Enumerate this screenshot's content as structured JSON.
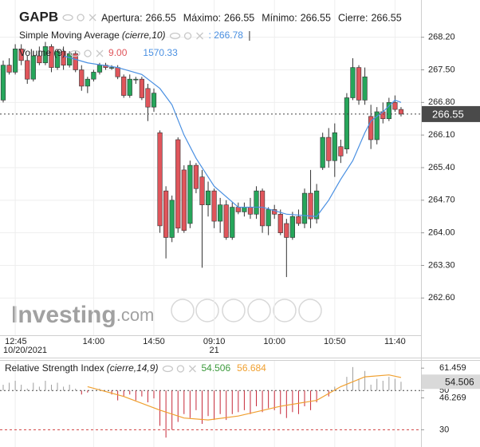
{
  "chart_data": [
    {
      "type": "candlestick",
      "symbol": "GAPB",
      "header": [
        {
          "label": "Apertura:",
          "value": "266.55"
        },
        {
          "label": "Máximo:",
          "value": "266.55"
        },
        {
          "label": "Mínimo:",
          "value": "266.55"
        },
        {
          "label": "Cierre:",
          "value": "266.55"
        }
      ],
      "open": [
        266.85,
        267.6,
        267.45,
        267.95,
        267.7,
        267.3,
        267.8,
        267.65,
        268.0,
        267.55,
        267.9,
        267.6,
        267.85,
        267.5,
        267.15,
        267.3,
        267.45,
        267.6,
        267.55,
        267.55,
        267.35,
        266.95,
        267.3,
        267.3,
        267.1,
        266.7,
        266.15,
        264.9,
        263.9,
        266.0,
        265.35,
        264.2,
        265.45,
        265.2,
        264.6,
        264.9,
        264.25,
        264.6,
        263.9,
        264.55,
        264.45,
        264.55,
        264.4,
        264.9,
        264.15,
        264.5,
        264.4,
        264.2,
        263.9,
        264.35,
        264.2,
        264.85,
        264.3,
        265.4,
        266.05,
        265.55,
        265.85,
        265.8,
        266.9,
        267.55,
        266.85,
        266.5,
        266.0,
        266.6,
        266.45,
        266.8,
        266.65
      ],
      "high": [
        267.7,
        267.75,
        268.05,
        268.05,
        267.8,
        267.9,
        268.0,
        268.1,
        268.05,
        267.95,
        268.0,
        267.9,
        267.9,
        267.6,
        267.35,
        267.5,
        267.65,
        267.65,
        267.6,
        267.6,
        267.4,
        267.4,
        267.35,
        267.35,
        267.2,
        267.1,
        266.2,
        265.0,
        264.8,
        266.05,
        265.45,
        265.55,
        265.5,
        265.35,
        265.1,
        264.95,
        264.75,
        264.7,
        264.65,
        264.65,
        264.65,
        264.75,
        265.0,
        264.95,
        264.55,
        264.6,
        264.5,
        264.3,
        264.45,
        264.5,
        264.95,
        265.35,
        265.05,
        266.15,
        266.25,
        266.35,
        266.0,
        267.0,
        267.75,
        267.6,
        267.55,
        266.75,
        266.7,
        266.8,
        266.9,
        266.95,
        266.7
      ],
      "low": [
        266.8,
        267.4,
        267.4,
        267.6,
        267.2,
        267.25,
        267.6,
        267.6,
        267.45,
        267.5,
        267.5,
        267.55,
        267.45,
        267.05,
        267.0,
        267.25,
        267.4,
        267.5,
        267.5,
        267.3,
        266.9,
        266.9,
        267.2,
        266.85,
        266.4,
        266.6,
        264.0,
        263.45,
        263.8,
        264.0,
        264.0,
        264.1,
        264.85,
        263.25,
        264.35,
        264.1,
        264.0,
        263.85,
        263.85,
        264.4,
        264.35,
        264.3,
        264.3,
        264.0,
        263.95,
        264.3,
        263.95,
        263.05,
        263.85,
        264.15,
        264.1,
        264.1,
        264.2,
        265.35,
        265.4,
        265.2,
        265.5,
        265.7,
        266.85,
        266.75,
        266.75,
        265.8,
        265.9,
        266.35,
        266.4,
        266.6,
        266.5
      ],
      "close": [
        267.6,
        267.45,
        267.95,
        267.7,
        267.3,
        267.8,
        267.65,
        268.0,
        267.55,
        267.9,
        267.6,
        267.85,
        267.5,
        267.15,
        267.3,
        267.45,
        267.6,
        267.55,
        267.55,
        267.35,
        266.95,
        267.3,
        267.3,
        266.9,
        266.7,
        267.0,
        264.15,
        263.9,
        264.7,
        264.1,
        264.05,
        265.45,
        264.95,
        264.6,
        264.9,
        264.25,
        264.6,
        263.9,
        264.55,
        264.45,
        264.55,
        264.4,
        264.9,
        264.15,
        264.5,
        264.4,
        264.0,
        263.9,
        264.35,
        264.2,
        264.85,
        264.3,
        264.9,
        266.05,
        265.55,
        266.15,
        265.65,
        266.9,
        267.55,
        266.85,
        267.35,
        266.0,
        266.6,
        266.45,
        266.8,
        266.65,
        266.55
      ],
      "up_color": "#26a65b",
      "down_color": "#e0555b",
      "xticks": [
        {
          "value": 2,
          "label": "12:45"
        },
        {
          "value": 15,
          "label": "14:00"
        },
        {
          "value": 25,
          "label": "14:50"
        },
        {
          "value": 35,
          "label": "09:10"
        },
        {
          "value": 45,
          "label": "10:00"
        },
        {
          "value": 55,
          "label": "10:50"
        },
        {
          "value": 65,
          "label": "11:40"
        }
      ],
      "date_labels": [
        {
          "value": 2,
          "label": "10/20/2021"
        },
        {
          "value": 35,
          "label": "21"
        }
      ],
      "ylim": [
        261.8,
        269.0
      ],
      "yticks": [
        {
          "value": 268.2,
          "label": "268.20"
        },
        {
          "value": 267.5,
          "label": "267.50"
        },
        {
          "value": 266.8,
          "label": "266.80"
        },
        {
          "value": 266.1,
          "label": "266.10"
        },
        {
          "value": 265.4,
          "label": "265.40"
        },
        {
          "value": 264.7,
          "label": "264.70"
        },
        {
          "value": 264.0,
          "label": "264.00"
        },
        {
          "value": 263.3,
          "label": "263.30"
        },
        {
          "value": 262.6,
          "label": "262.60"
        }
      ],
      "grid": true,
      "last_price": 266.55,
      "sma": {
        "name": "Simple Moving Average",
        "params": "(cierre,10)",
        "value_label": ": 266.78",
        "color": "#4a90e2",
        "x": [
          10,
          14,
          19,
          23,
          26,
          28,
          30,
          32,
          35,
          39,
          43,
          47,
          52,
          54,
          56,
          58,
          60,
          61,
          63,
          65,
          66
        ],
        "values": [
          267.8,
          267.65,
          267.55,
          267.4,
          267.1,
          266.75,
          266.1,
          265.6,
          265.0,
          264.55,
          264.55,
          264.4,
          264.35,
          264.7,
          265.15,
          265.55,
          266.15,
          266.4,
          266.6,
          266.85,
          266.8
        ]
      },
      "volume": {
        "name": "Volume (9)",
        "value_labels": [
          "9.00",
          "1570.33"
        ],
        "colors": [
          "#e0555b",
          "#4a90e2"
        ]
      },
      "watermark": [
        "Investing",
        ".com"
      ]
    },
    {
      "type": "rsi",
      "name": "Relative Strength Index",
      "params": "(cierre,14,9)",
      "values": [
        53,
        54,
        55,
        53,
        51,
        54,
        52,
        55,
        53,
        54,
        52,
        53,
        51,
        48,
        49,
        50,
        51,
        50,
        48,
        45,
        47,
        48,
        45,
        47,
        44,
        46,
        32,
        26,
        30,
        34,
        38,
        36,
        40,
        33,
        37,
        35,
        38,
        35,
        38,
        39,
        40,
        38,
        42,
        39,
        41,
        40,
        38,
        36,
        39,
        38,
        42,
        40,
        44,
        50,
        47,
        52,
        50,
        57,
        62,
        56,
        60,
        53,
        56,
        55,
        57,
        56,
        54.506
      ],
      "up_color": "#9e9e9e",
      "down_color": "#c62838",
      "value_color": "#3c9a3c",
      "signal": {
        "color": "#f0a030",
        "x": [
          14,
          20,
          26,
          30,
          34,
          39,
          46,
          52,
          56,
          60,
          64,
          66
        ],
        "values": [
          52,
          47,
          40,
          36,
          35,
          37,
          42,
          45,
          52,
          57,
          58,
          56.684
        ]
      },
      "levels": [
        30,
        50
      ],
      "ylim": [
        21.2,
        65.2
      ],
      "yticks": [
        61.459,
        50,
        46.269,
        30
      ]
    }
  ]
}
